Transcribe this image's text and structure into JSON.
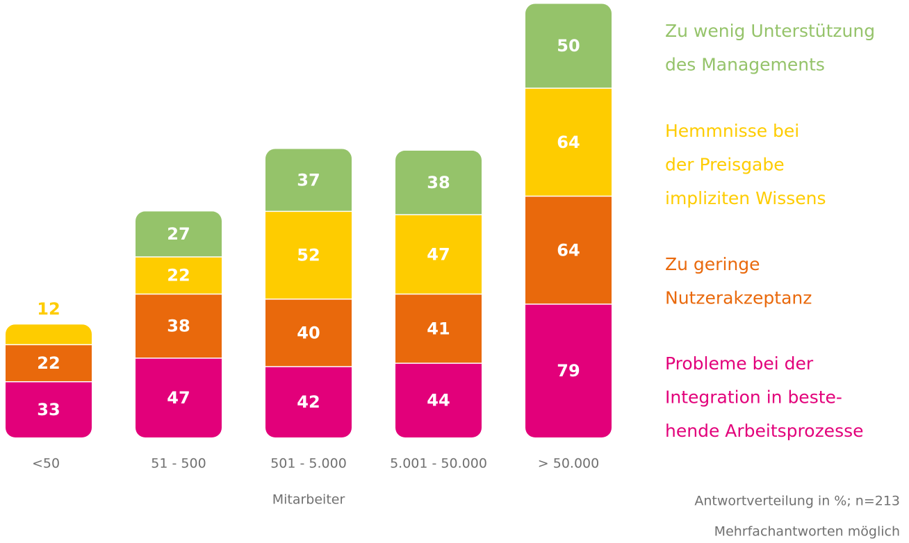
{
  "chart_data": {
    "type": "stacked_bar",
    "categories": [
      "<50",
      "51 - 500",
      "501 - 5.000",
      "5.001 - 50.000",
      "> 50.000"
    ],
    "series": [
      {
        "name": "Probleme bei der\nIntegration in beste-\nhende Arbeitsprozesse",
        "color": "#e2007a",
        "values": [
          33,
          47,
          42,
          44,
          79
        ]
      },
      {
        "name": "Zu geringe\nNutzerakzeptanz",
        "color": "#e9690c",
        "values": [
          22,
          38,
          40,
          41,
          64
        ]
      },
      {
        "name": "Hemmnisse bei\nder Preisgabe\nimpliziten Wissens",
        "color": "#fecc00",
        "values": [
          12,
          22,
          52,
          47,
          64
        ]
      },
      {
        "name": "Zu wenig Unterstützung\ndes Managements",
        "color": "#95c36a",
        "values": [
          null,
          27,
          37,
          38,
          50
        ]
      }
    ],
    "x_label": "Mitarbeiter",
    "annotations": [
      "Antwortverteilung in %; n=213",
      "Mehrfachantworten möglich"
    ]
  }
}
